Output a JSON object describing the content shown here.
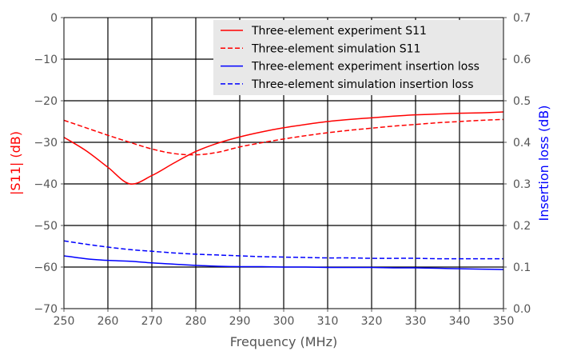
{
  "chart_data": {
    "type": "line",
    "xlabel": "Frequency (MHz)",
    "ylabel": "|S11| (dB)",
    "y2label": "Insertion loss (dB)",
    "xlim": [
      250,
      350
    ],
    "ylim": [
      -70,
      0
    ],
    "y2lim": [
      0.0,
      0.7
    ],
    "xticks": [
      "250",
      "260",
      "270",
      "280",
      "290",
      "300",
      "310",
      "320",
      "330",
      "340",
      "350"
    ],
    "yticks": [
      "0",
      "−10",
      "−20",
      "−30",
      "−40",
      "−50",
      "−60",
      "−70"
    ],
    "y2ticks": [
      "0.0",
      "0.1",
      "0.2",
      "0.3",
      "0.4",
      "0.5",
      "0.6",
      "0.7"
    ],
    "grid": true,
    "legend_position": "top-right",
    "colors": {
      "left_axis": "#ff0000",
      "right_axis": "#0000ff",
      "legend_bg": "#e8e8e8"
    },
    "x": [
      250,
      255,
      260,
      265,
      270,
      275,
      280,
      285,
      290,
      295,
      300,
      305,
      310,
      315,
      320,
      325,
      330,
      335,
      340,
      345,
      350
    ],
    "series": [
      {
        "name": "Three-element experiment S11",
        "axis": "left",
        "color": "#ff0000",
        "dash": "solid",
        "values": [
          -28.8,
          -32.0,
          -36.0,
          -40.0,
          -38.0,
          -35.0,
          -32.2,
          -30.2,
          -28.7,
          -27.5,
          -26.5,
          -25.7,
          -25.0,
          -24.5,
          -24.1,
          -23.7,
          -23.4,
          -23.2,
          -23.0,
          -22.9,
          -22.7
        ]
      },
      {
        "name": "Three-element simulation S11",
        "axis": "left",
        "color": "#ff0000",
        "dash": "dashed",
        "values": [
          -24.7,
          -26.5,
          -28.3,
          -30.0,
          -31.6,
          -32.7,
          -33.0,
          -32.4,
          -31.1,
          -30.1,
          -29.2,
          -28.4,
          -27.7,
          -27.1,
          -26.6,
          -26.1,
          -25.7,
          -25.3,
          -25.0,
          -24.7,
          -24.5
        ]
      },
      {
        "name": "Three-element experiment insertion loss",
        "axis": "right",
        "color": "#0000ff",
        "dash": "solid",
        "values": [
          0.127,
          0.12,
          0.116,
          0.114,
          0.11,
          0.107,
          0.104,
          0.102,
          0.101,
          0.101,
          0.1,
          0.1,
          0.099,
          0.099,
          0.099,
          0.098,
          0.098,
          0.097,
          0.096,
          0.095,
          0.094
        ]
      },
      {
        "name": "Three-element simulation insertion loss",
        "axis": "right",
        "color": "#0000ff",
        "dash": "dashed",
        "values": [
          0.163,
          0.155,
          0.148,
          0.142,
          0.138,
          0.134,
          0.131,
          0.129,
          0.127,
          0.125,
          0.124,
          0.123,
          0.122,
          0.122,
          0.121,
          0.121,
          0.121,
          0.12,
          0.12,
          0.12,
          0.12
        ]
      }
    ]
  }
}
